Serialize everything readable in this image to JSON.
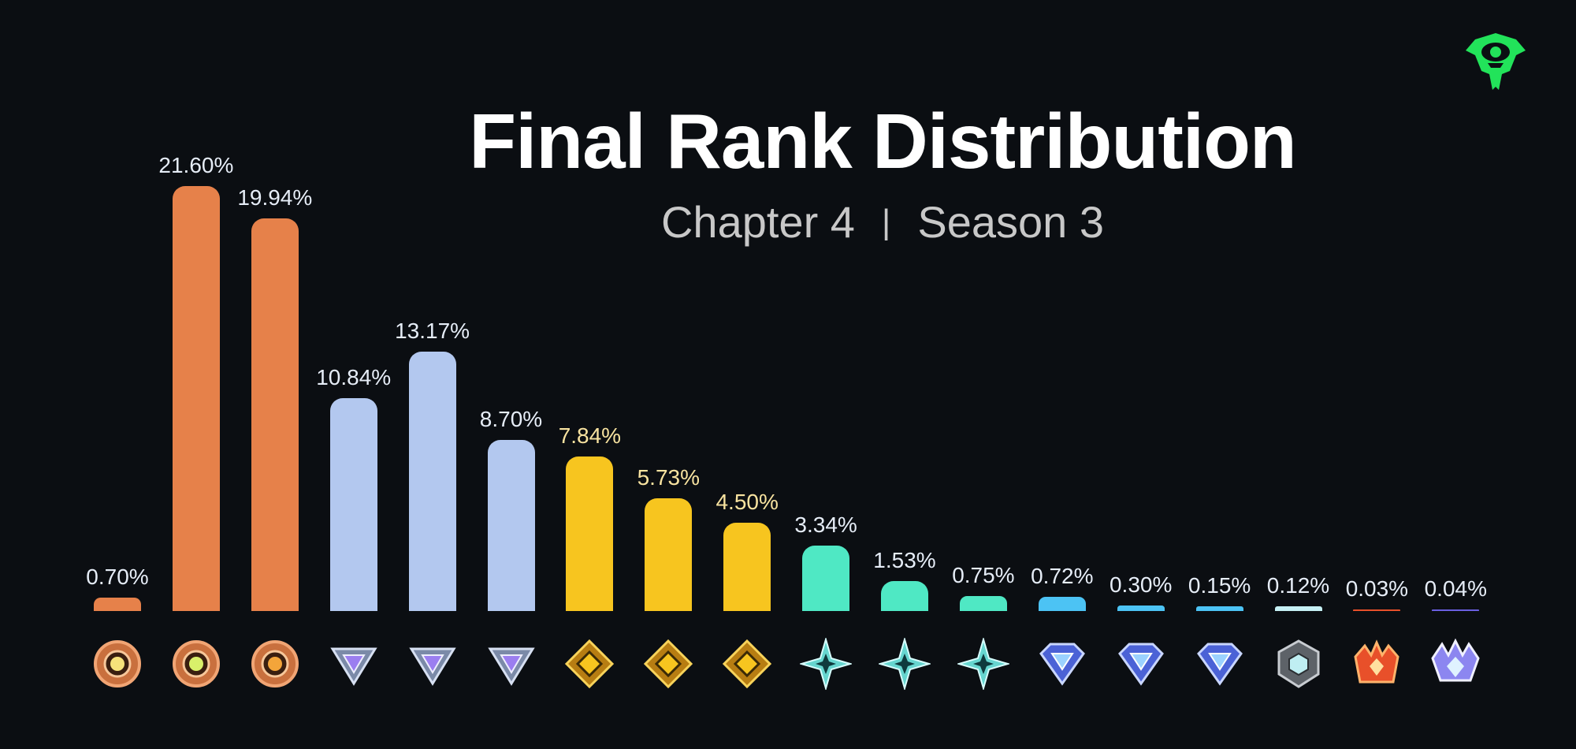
{
  "header": {
    "title": "Final Rank Distribution",
    "subtitle_left": "Chapter 4",
    "subtitle_sep": "|",
    "subtitle_right": "Season 3"
  },
  "logo": {
    "icon": "green-helmet-logo-icon",
    "color": "#22e35a"
  },
  "colors": {
    "bronze": "#e6814a",
    "silver": "#b3c8ef",
    "gold": "#f7c51f",
    "platinum": "#4fe8c4",
    "diamond": "#4cc3f4",
    "elite": "#c6f0f4",
    "champion": "#e8502a",
    "unreal": "#6a5fe0",
    "label_default": "#e6edf7",
    "label_gold": "#f8e3a0"
  },
  "chart_data": {
    "type": "bar",
    "title": "Final Rank Distribution",
    "subtitle": "Chapter 4 | Season 3",
    "xlabel": "",
    "ylabel": "",
    "grid": false,
    "legend": "none",
    "categories": [
      "Bronze I",
      "Bronze II",
      "Bronze III",
      "Silver I",
      "Silver II",
      "Silver III",
      "Gold I",
      "Gold II",
      "Gold III",
      "Platinum I",
      "Platinum II",
      "Platinum III",
      "Diamond I",
      "Diamond II",
      "Diamond III",
      "Elite",
      "Champion",
      "Unreal"
    ],
    "values": [
      0.7,
      21.6,
      19.94,
      10.84,
      13.17,
      8.7,
      7.84,
      5.73,
      4.5,
      3.34,
      1.53,
      0.75,
      0.72,
      0.3,
      0.15,
      0.12,
      0.03,
      0.04
    ],
    "labels": [
      "0.70%",
      "21.60%",
      "19.94%",
      "10.84%",
      "13.17%",
      "8.70%",
      "7.84%",
      "5.73%",
      "4.50%",
      "3.34%",
      "1.53%",
      "0.75%",
      "0.72%",
      "0.30%",
      "0.15%",
      "0.12%",
      "0.03%",
      "0.04%"
    ],
    "tiers": [
      "bronze",
      "bronze",
      "bronze",
      "silver",
      "silver",
      "silver",
      "gold",
      "gold",
      "gold",
      "platinum",
      "platinum",
      "platinum",
      "diamond",
      "diamond",
      "diamond",
      "elite",
      "champion",
      "unreal"
    ],
    "icons": [
      "bronze-1-rank-icon",
      "bronze-2-rank-icon",
      "bronze-3-rank-icon",
      "silver-1-rank-icon",
      "silver-2-rank-icon",
      "silver-3-rank-icon",
      "gold-1-rank-icon",
      "gold-2-rank-icon",
      "gold-3-rank-icon",
      "platinum-1-rank-icon",
      "platinum-2-rank-icon",
      "platinum-3-rank-icon",
      "diamond-1-rank-icon",
      "diamond-2-rank-icon",
      "diamond-3-rank-icon",
      "elite-rank-icon",
      "champion-rank-icon",
      "unreal-rank-icon"
    ],
    "ylim": [
      0,
      22
    ]
  }
}
